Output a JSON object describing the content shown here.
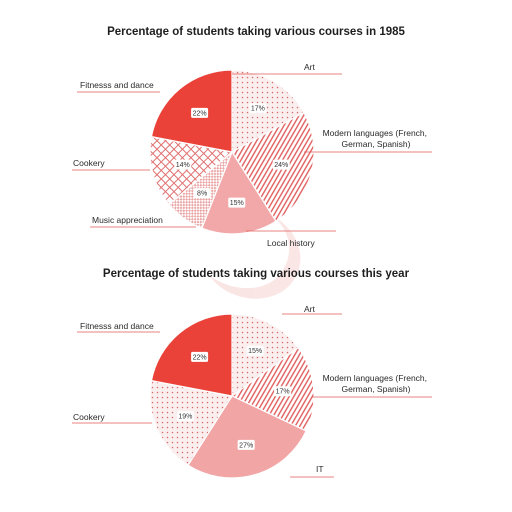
{
  "chart_data": [
    {
      "type": "pie",
      "title": "Percentage of students taking various courses in 1985",
      "categories": [
        "Art",
        "Modern languages (French, German, Spanish)",
        "Local history",
        "Music appreciation",
        "Cookery",
        "Fitnesss and dance"
      ],
      "values": [
        17,
        24,
        15,
        8,
        14,
        22
      ],
      "value_labels": [
        "17%",
        "24%",
        "15%",
        "8%",
        "14%",
        "22%"
      ],
      "slice_colors": [
        "#f3d3d3",
        "#e87878",
        "#f2a8a8",
        "#f1c5c5",
        "#e98a8a",
        "#ea4238"
      ],
      "slice_patterns": [
        "dots",
        "diagonal",
        "solid",
        "checker",
        "crosshatch",
        "solid"
      ]
    },
    {
      "type": "pie",
      "title": "Percentage of students taking various courses this year",
      "categories": [
        "Art",
        "Modern languages (French, German, Spanish)",
        "IT",
        "Cookery",
        "Fitnesss and dance"
      ],
      "values": [
        15,
        17,
        27,
        19,
        22
      ],
      "value_labels": [
        "15%",
        "17%",
        "27%",
        "19%",
        "22%"
      ],
      "slice_colors": [
        "#f3d3d3",
        "#e87878",
        "#f2a5a5",
        "#f1c5c5",
        "#ea4238"
      ],
      "slice_patterns": [
        "dots",
        "diagonal",
        "solid",
        "dots",
        "solid"
      ]
    }
  ]
}
